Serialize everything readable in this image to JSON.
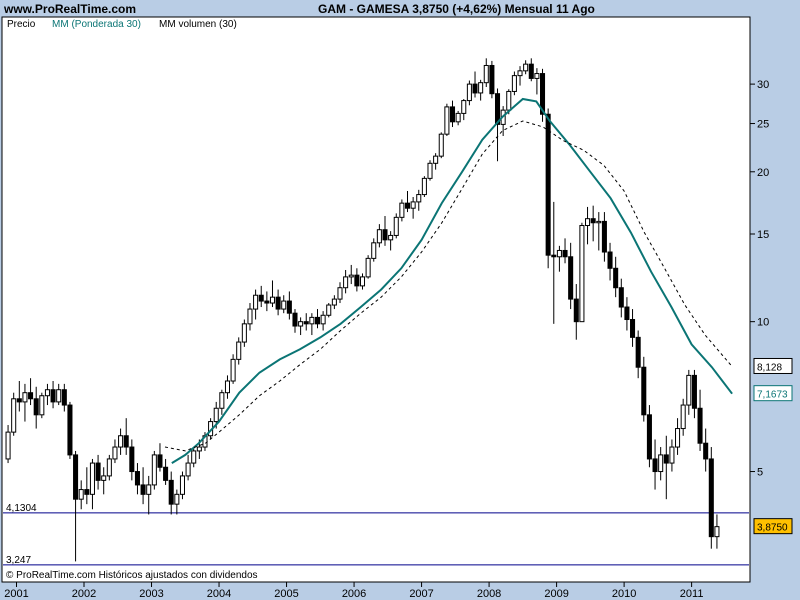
{
  "site": "www.ProRealTime.com",
  "title": "GAM - GAMESA    3,8750 (+4,62%)    Mensual  11 Ago",
  "legend": {
    "price": "Precio",
    "ma_weighted": "MM (Ponderada 30)",
    "ma_volume": "MM volumen (30)"
  },
  "footer": "© ProRealTime.com  Históricos ajustados con dividendos",
  "levels": [
    {
      "label": "4,1304",
      "value": 4.1304
    },
    {
      "label": "3,247",
      "value": 3.247
    }
  ],
  "badges": [
    {
      "label": "8,128",
      "value": 8.128,
      "bg": "#ffffff",
      "color": "#000000",
      "border": "#000000"
    },
    {
      "label": "7,1673",
      "value": 7.1673,
      "bg": "#ffffff",
      "color": "#0b7575",
      "border": "#0b7575"
    },
    {
      "label": "3,8750",
      "value": 3.875,
      "bg": "#ffc000",
      "color": "#000000",
      "border": "#000000"
    }
  ],
  "colors": {
    "background": "#b9cde5",
    "plot_bg": "#ffffff",
    "candle_body_up": "#ffffff",
    "candle_body_down": "#000000",
    "ma_weighted": "#0b7575",
    "ma_volume": "#000000",
    "level_line": "#00008b"
  },
  "chart_data": {
    "type": "candlestick",
    "title": "GAM - GAMESA    3,8750 (+4,62%)    Mensual  11 Ago",
    "y_scale": "log",
    "ylim": [
      3.0,
      38.0
    ],
    "y_ticks": [
      {
        "label": "30",
        "value": 30
      },
      {
        "label": "25",
        "value": 25
      },
      {
        "label": "20",
        "value": 20
      },
      {
        "label": "15",
        "value": 15
      },
      {
        "label": "10",
        "value": 10
      },
      {
        "label": "5",
        "value": 5
      }
    ],
    "x_ticks": [
      "2001",
      "2002",
      "2003",
      "2004",
      "2005",
      "2006",
      "2007",
      "2008",
      "2009",
      "2010",
      "2011"
    ],
    "xlim": [
      2000.8,
      2011.85
    ],
    "ohlc_monthly_from": "2000-11",
    "ohlc": [
      [
        5.3,
        6.2,
        5.2,
        6.0
      ],
      [
        6.0,
        7.2,
        5.9,
        7.0
      ],
      [
        7.0,
        7.6,
        6.6,
        6.9
      ],
      [
        6.9,
        7.5,
        6.3,
        7.2
      ],
      [
        7.2,
        7.7,
        6.8,
        7.0
      ],
      [
        7.0,
        7.4,
        6.1,
        6.5
      ],
      [
        6.5,
        7.2,
        6.4,
        7.1
      ],
      [
        7.1,
        7.5,
        6.8,
        7.3
      ],
      [
        7.3,
        7.6,
        6.7,
        6.9
      ],
      [
        6.9,
        7.5,
        6.8,
        7.3
      ],
      [
        7.3,
        7.5,
        6.6,
        6.8
      ],
      [
        6.8,
        6.9,
        5.3,
        5.4
      ],
      [
        5.4,
        5.5,
        3.3,
        4.4
      ],
      [
        4.4,
        4.8,
        4.2,
        4.6
      ],
      [
        4.6,
        5.1,
        4.3,
        4.5
      ],
      [
        4.5,
        5.3,
        4.2,
        5.2
      ],
      [
        5.2,
        5.4,
        4.6,
        4.8
      ],
      [
        4.8,
        5.1,
        4.5,
        4.9
      ],
      [
        4.9,
        5.4,
        4.8,
        5.3
      ],
      [
        5.3,
        5.8,
        5.2,
        5.6
      ],
      [
        5.6,
        6.1,
        5.4,
        5.9
      ],
      [
        5.9,
        6.4,
        5.4,
        5.6
      ],
      [
        5.6,
        5.8,
        4.8,
        5.0
      ],
      [
        5.0,
        5.2,
        4.5,
        4.7
      ],
      [
        4.7,
        5.1,
        4.3,
        4.5
      ],
      [
        4.5,
        4.9,
        4.1,
        4.7
      ],
      [
        4.7,
        5.5,
        4.6,
        5.4
      ],
      [
        5.4,
        5.7,
        5.0,
        5.1
      ],
      [
        5.1,
        5.3,
        4.7,
        4.8
      ],
      [
        4.8,
        5.0,
        4.1,
        4.3
      ],
      [
        4.3,
        4.6,
        4.1,
        4.5
      ],
      [
        4.5,
        5.0,
        4.4,
        4.9
      ],
      [
        4.9,
        5.4,
        4.8,
        5.2
      ],
      [
        5.2,
        5.6,
        5.1,
        5.5
      ],
      [
        5.5,
        5.8,
        5.3,
        5.6
      ],
      [
        5.6,
        6.0,
        5.5,
        5.9
      ],
      [
        5.9,
        6.4,
        5.8,
        6.3
      ],
      [
        6.3,
        6.9,
        6.1,
        6.7
      ],
      [
        6.7,
        7.3,
        6.5,
        7.2
      ],
      [
        7.2,
        7.8,
        7.0,
        7.6
      ],
      [
        7.6,
        8.6,
        7.5,
        8.4
      ],
      [
        8.4,
        9.3,
        8.2,
        9.1
      ],
      [
        9.1,
        10.1,
        8.9,
        9.9
      ],
      [
        9.9,
        10.9,
        9.6,
        10.6
      ],
      [
        10.6,
        11.6,
        10.1,
        11.3
      ],
      [
        11.3,
        11.8,
        10.7,
        11.0
      ],
      [
        11.0,
        11.5,
        10.5,
        10.9
      ],
      [
        10.9,
        12.1,
        10.7,
        11.2
      ],
      [
        11.2,
        11.6,
        10.3,
        10.6
      ],
      [
        10.6,
        11.3,
        10.4,
        11.0
      ],
      [
        11.0,
        11.5,
        10.1,
        10.4
      ],
      [
        10.4,
        10.6,
        9.5,
        9.8
      ],
      [
        9.8,
        10.2,
        9.4,
        10.0
      ],
      [
        10.0,
        10.4,
        9.6,
        9.9
      ],
      [
        9.9,
        10.4,
        9.4,
        10.2
      ],
      [
        10.2,
        10.6,
        9.7,
        9.9
      ],
      [
        9.9,
        10.5,
        9.6,
        10.3
      ],
      [
        10.3,
        10.9,
        10.2,
        10.8
      ],
      [
        10.8,
        11.3,
        10.6,
        11.1
      ],
      [
        11.1,
        12.0,
        10.9,
        11.7
      ],
      [
        11.7,
        12.7,
        11.4,
        12.3
      ],
      [
        12.3,
        13.0,
        11.9,
        12.4
      ],
      [
        12.4,
        12.8,
        11.5,
        11.8
      ],
      [
        11.8,
        12.5,
        11.6,
        12.3
      ],
      [
        12.3,
        13.6,
        12.2,
        13.4
      ],
      [
        13.4,
        14.7,
        13.2,
        14.4
      ],
      [
        14.4,
        15.7,
        14.1,
        15.3
      ],
      [
        15.3,
        16.3,
        14.2,
        14.6
      ],
      [
        14.6,
        15.2,
        13.9,
        14.9
      ],
      [
        14.9,
        16.5,
        14.7,
        16.2
      ],
      [
        16.2,
        17.6,
        15.9,
        17.3
      ],
      [
        17.3,
        18.3,
        16.6,
        16.9
      ],
      [
        16.9,
        17.8,
        16.1,
        17.4
      ],
      [
        17.4,
        18.4,
        16.7,
        18.0
      ],
      [
        18.0,
        19.6,
        17.8,
        19.4
      ],
      [
        19.4,
        21.1,
        19.2,
        20.8
      ],
      [
        20.8,
        21.8,
        20.2,
        21.5
      ],
      [
        21.5,
        24.0,
        21.3,
        23.8
      ],
      [
        23.8,
        27.4,
        23.6,
        27.0
      ],
      [
        27.0,
        27.8,
        24.6,
        25.2
      ],
      [
        25.2,
        26.5,
        24.8,
        26.2
      ],
      [
        26.2,
        28.0,
        25.4,
        27.8
      ],
      [
        27.8,
        30.5,
        27.2,
        30.0
      ],
      [
        30.0,
        31.8,
        28.2,
        28.8
      ],
      [
        28.8,
        30.6,
        27.8,
        30.2
      ],
      [
        30.2,
        33.8,
        29.6,
        32.7
      ],
      [
        32.7,
        33.4,
        28.1,
        28.7
      ],
      [
        28.7,
        29.4,
        21.0,
        24.9
      ],
      [
        24.9,
        27.1,
        23.6,
        26.6
      ],
      [
        26.6,
        29.3,
        26.1,
        29.0
      ],
      [
        29.0,
        31.8,
        28.5,
        31.2
      ],
      [
        31.2,
        32.6,
        29.8,
        31.9
      ],
      [
        31.9,
        33.5,
        31.4,
        32.9
      ],
      [
        32.9,
        33.8,
        30.4,
        30.8
      ],
      [
        30.8,
        32.3,
        28.6,
        31.5
      ],
      [
        31.5,
        32.2,
        25.2,
        26.1
      ],
      [
        26.1,
        26.8,
        12.8,
        13.6
      ],
      [
        13.6,
        17.4,
        9.9,
        13.5
      ],
      [
        13.5,
        14.2,
        12.6,
        13.9
      ],
      [
        13.9,
        14.7,
        13.1,
        13.5
      ],
      [
        13.5,
        14.4,
        10.6,
        11.1
      ],
      [
        11.1,
        11.9,
        9.2,
        10.0
      ],
      [
        10.0,
        15.8,
        10.0,
        15.6
      ],
      [
        15.6,
        17.0,
        14.3,
        16.1
      ],
      [
        16.1,
        17.1,
        14.5,
        15.8
      ],
      [
        15.8,
        16.6,
        13.9,
        15.9
      ],
      [
        15.9,
        16.6,
        13.2,
        13.8
      ],
      [
        13.8,
        14.4,
        12.1,
        12.8
      ],
      [
        12.8,
        13.5,
        11.2,
        11.7
      ],
      [
        11.7,
        12.2,
        10.2,
        10.7
      ],
      [
        10.7,
        11.2,
        9.6,
        10.1
      ],
      [
        10.1,
        10.6,
        8.9,
        9.3
      ],
      [
        9.3,
        9.6,
        7.7,
        8.1
      ],
      [
        8.1,
        8.5,
        6.3,
        6.5
      ],
      [
        6.5,
        6.8,
        5.1,
        5.3
      ],
      [
        5.3,
        5.8,
        4.6,
        5.0
      ],
      [
        5.0,
        5.6,
        4.8,
        5.4
      ],
      [
        5.4,
        5.9,
        4.4,
        5.2
      ],
      [
        5.2,
        5.8,
        5.0,
        5.6
      ],
      [
        5.6,
        6.4,
        5.4,
        6.1
      ],
      [
        6.1,
        7.0,
        5.9,
        6.8
      ],
      [
        6.8,
        8.0,
        6.5,
        7.8
      ],
      [
        7.8,
        8.0,
        6.4,
        6.7
      ],
      [
        6.7,
        7.3,
        5.5,
        5.7
      ],
      [
        5.7,
        6.1,
        5.0,
        5.3
      ],
      [
        5.3,
        5.6,
        3.5,
        3.7
      ],
      [
        3.7,
        4.1,
        3.5,
        3.875
      ]
    ],
    "series": [
      {
        "name": "MM (Ponderada 30)",
        "style": "solid",
        "points": [
          [
            2003.3,
            5.2
          ],
          [
            2003.5,
            5.4
          ],
          [
            2003.7,
            5.7
          ],
          [
            2004.0,
            6.3
          ],
          [
            2004.3,
            7.2
          ],
          [
            2004.6,
            7.9
          ],
          [
            2004.9,
            8.4
          ],
          [
            2005.2,
            8.8
          ],
          [
            2005.5,
            9.3
          ],
          [
            2005.8,
            9.9
          ],
          [
            2006.1,
            10.7
          ],
          [
            2006.4,
            11.6
          ],
          [
            2006.7,
            12.8
          ],
          [
            2007.0,
            14.6
          ],
          [
            2007.3,
            17.3
          ],
          [
            2007.6,
            20.0
          ],
          [
            2007.9,
            23.2
          ],
          [
            2008.2,
            25.8
          ],
          [
            2008.5,
            28.0
          ],
          [
            2008.7,
            27.7
          ],
          [
            2008.9,
            25.3
          ],
          [
            2009.2,
            22.6
          ],
          [
            2009.5,
            20.0
          ],
          [
            2009.8,
            17.7
          ],
          [
            2010.1,
            15.1
          ],
          [
            2010.4,
            12.6
          ],
          [
            2010.7,
            10.7
          ],
          [
            2011.0,
            9.0
          ],
          [
            2011.3,
            8.1
          ],
          [
            2011.6,
            7.1673
          ]
        ]
      },
      {
        "name": "MM volumen (30)",
        "style": "dashed",
        "points": [
          [
            2003.2,
            5.6
          ],
          [
            2003.5,
            5.5
          ],
          [
            2003.8,
            5.7
          ],
          [
            2004.0,
            6.0
          ],
          [
            2004.3,
            6.5
          ],
          [
            2004.6,
            7.1
          ],
          [
            2004.9,
            7.6
          ],
          [
            2005.2,
            8.2
          ],
          [
            2005.5,
            8.8
          ],
          [
            2005.8,
            9.6
          ],
          [
            2006.1,
            10.4
          ],
          [
            2006.4,
            11.2
          ],
          [
            2006.7,
            12.3
          ],
          [
            2007.0,
            13.8
          ],
          [
            2007.3,
            15.8
          ],
          [
            2007.6,
            18.5
          ],
          [
            2007.9,
            21.7
          ],
          [
            2008.2,
            24.2
          ],
          [
            2008.5,
            25.3
          ],
          [
            2008.8,
            24.6
          ],
          [
            2009.1,
            23.1
          ],
          [
            2009.4,
            22.1
          ],
          [
            2009.7,
            20.6
          ],
          [
            2010.0,
            18.3
          ],
          [
            2010.3,
            15.1
          ],
          [
            2010.6,
            12.8
          ],
          [
            2010.9,
            10.8
          ],
          [
            2011.2,
            9.4
          ],
          [
            2011.6,
            8.128
          ]
        ]
      }
    ],
    "grid": false,
    "legend_position": "top-left"
  }
}
